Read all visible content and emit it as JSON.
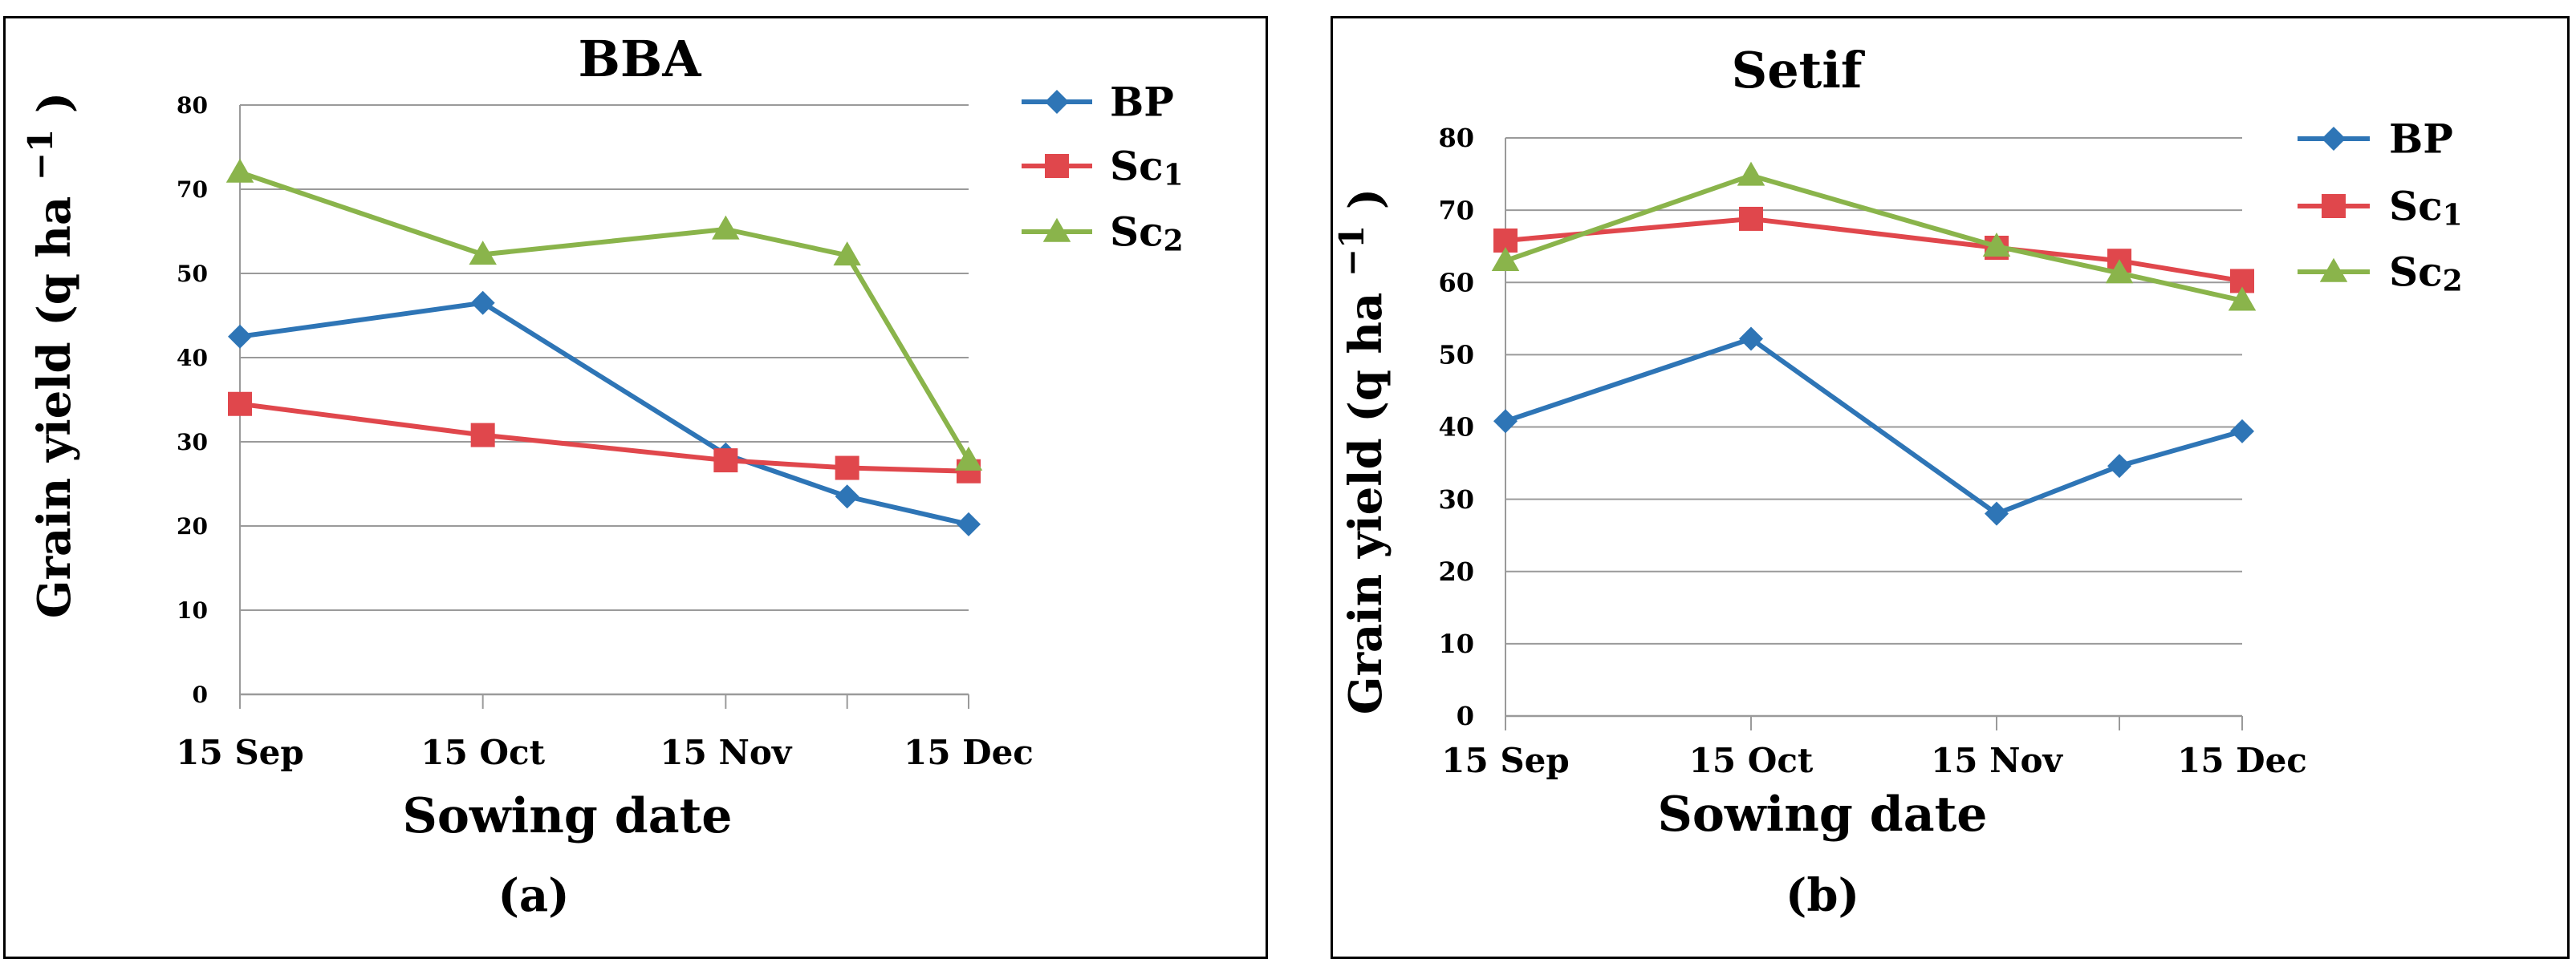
{
  "chart_data": [
    {
      "type": "line",
      "panel_label": "(a)",
      "title": "BBA",
      "xlabel": "Sowing date",
      "ylabel": "Grain yield (q ha",
      "ylabel_unit_sup": "−1",
      "ylabel_close": ")",
      "categories": [
        "15 Sep",
        "15 Oct",
        "15 Nov",
        "",
        "15 Dec"
      ],
      "x": [
        0,
        1,
        2,
        2.5,
        3
      ],
      "y_ticks": [
        0,
        10,
        20,
        30,
        40,
        50,
        70,
        80
      ],
      "ylim": [
        0,
        80
      ],
      "grid": true,
      "legend_position": "top-right",
      "series": [
        {
          "name": "BP",
          "base": "BP",
          "sub": "",
          "color": "#2e75b6",
          "marker": "diamond",
          "values": [
            42.5,
            46.5,
            28.5,
            23.5,
            20.2
          ]
        },
        {
          "name": "Sc1",
          "base": "Sc",
          "sub": "1",
          "color": "#e0474c",
          "marker": "square",
          "values": [
            34.5,
            30.8,
            27.8,
            26.9,
            26.5
          ]
        },
        {
          "name": "Sc2",
          "base": "Sc",
          "sub": "2",
          "color": "#8ab44b",
          "marker": "triangle",
          "values": [
            72,
            54.5,
            60.5,
            54.3,
            27.8
          ]
        }
      ]
    },
    {
      "type": "line",
      "panel_label": "(b)",
      "title": "Setif",
      "xlabel": "Sowing date",
      "ylabel": "Grain yield (q ha",
      "ylabel_unit_sup": "−1",
      "ylabel_close": ")",
      "categories": [
        "15 Sep",
        "15 Oct",
        "15 Nov",
        "",
        "15 Dec"
      ],
      "x": [
        0,
        1,
        2,
        2.5,
        3
      ],
      "y_ticks": [
        0,
        10,
        20,
        30,
        40,
        50,
        60,
        70,
        80
      ],
      "ylim": [
        0,
        80
      ],
      "grid": true,
      "legend_position": "top-right",
      "series": [
        {
          "name": "BP",
          "base": "BP",
          "sub": "",
          "color": "#2e75b6",
          "marker": "diamond",
          "values": [
            40.8,
            52.2,
            28,
            34.6,
            39.4
          ]
        },
        {
          "name": "Sc1",
          "base": "Sc",
          "sub": "1",
          "color": "#e0474c",
          "marker": "square",
          "values": [
            65.8,
            68.8,
            64.8,
            63,
            60.2
          ]
        },
        {
          "name": "Sc2",
          "base": "Sc",
          "sub": "2",
          "color": "#8ab44b",
          "marker": "triangle",
          "values": [
            63,
            74.8,
            65,
            61.3,
            57.5
          ]
        }
      ]
    }
  ]
}
